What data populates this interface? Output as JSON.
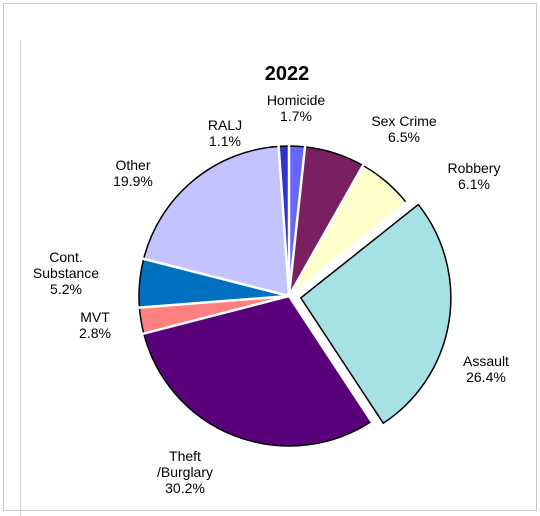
{
  "chart_data": {
    "type": "pie",
    "title": "2022",
    "slices": [
      {
        "label": "Homicide",
        "label_lines": [
          "Homicide"
        ],
        "value_text": "1.7%",
        "value": 1.7,
        "color": "#6666ff"
      },
      {
        "label": "Sex Crime",
        "label_lines": [
          "Sex Crime"
        ],
        "value_text": "6.5%",
        "value": 6.5,
        "color": "#7a2060"
      },
      {
        "label": "Robbery",
        "label_lines": [
          "Robbery"
        ],
        "value_text": "6.1%",
        "value": 6.1,
        "color": "#ffffcc"
      },
      {
        "label": "Assault",
        "label_lines": [
          "Assault"
        ],
        "value_text": "26.4%",
        "value": 26.4,
        "color": "#a6e1e3"
      },
      {
        "label": "Theft /Burglary",
        "label_lines": [
          "Theft",
          "/Burglary"
        ],
        "value_text": "30.2%",
        "value": 30.2,
        "color": "#5b007b"
      },
      {
        "label": "MVT",
        "label_lines": [
          "MVT"
        ],
        "value_text": "2.8%",
        "value": 2.8,
        "color": "#ff8080"
      },
      {
        "label": "Cont. Substance",
        "label_lines": [
          "Cont.",
          "Substance"
        ],
        "value_text": "5.2%",
        "value": 5.2,
        "color": "#0070c0"
      },
      {
        "label": "Other",
        "label_lines": [
          "Other"
        ],
        "value_text": "19.9%",
        "value": 19.9,
        "color": "#c3c3ff"
      },
      {
        "label": "RALJ",
        "label_lines": [
          "RALJ"
        ],
        "value_text": "1.1%",
        "value": 1.1,
        "color": "#3333cc"
      }
    ],
    "start": "12 o'clock",
    "direction": "clockwise",
    "exploded_slices": [
      "Assault"
    ],
    "legend": "none"
  }
}
